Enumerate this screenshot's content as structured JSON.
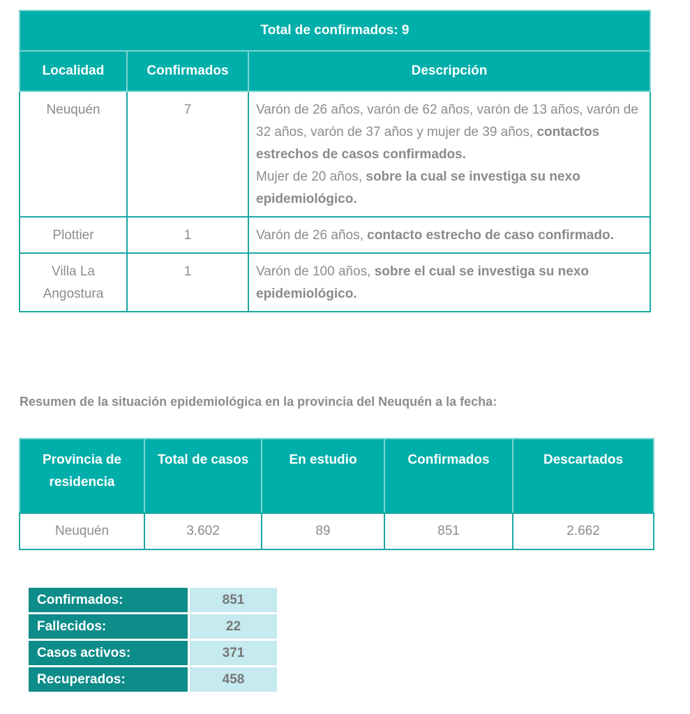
{
  "table1": {
    "title": "Total de confirmados: 9",
    "headers": [
      "Localidad",
      "Confirmados",
      "Descripción"
    ],
    "rows": [
      {
        "localidad": "Neuquén",
        "confirmados": "7",
        "desc": [
          {
            "t": "Varón de 26 años, varón de 62 años, varón de 13 años, varón de 32 años, varón de 37 años y mujer de 39 años, ",
            "b": false
          },
          {
            "t": "contactos estrechos de casos confirmados.",
            "b": true
          },
          {
            "t": "Mujer de 20 años, ",
            "b": false,
            "br": true
          },
          {
            "t": "sobre la cual se investiga su nexo epidemiológico.",
            "b": true
          }
        ]
      },
      {
        "localidad": "Plottier",
        "confirmados": "1",
        "desc": [
          {
            "t": "Varón de 26 años, ",
            "b": false
          },
          {
            "t": "contacto estrecho de caso confirmado.",
            "b": true
          }
        ]
      },
      {
        "localidad": "Villa La Angostura",
        "confirmados": "1",
        "desc": [
          {
            "t": "Varón de 100 años, ",
            "b": false
          },
          {
            "t": "sobre el cual se investiga su nexo epidemiológico.",
            "b": true
          }
        ]
      }
    ]
  },
  "heading": "Resumen de la situación epidemiológica en la provincia del Neuquén a la fecha:",
  "table2": {
    "headers": [
      "Provincia de residencia",
      "Total de casos",
      "En estudio",
      "Confirmados",
      "Descartados"
    ],
    "row": [
      "Neuquén",
      "3.602",
      "89",
      "851",
      "2.662"
    ]
  },
  "table3": [
    {
      "label": "Confirmados:",
      "value": "851"
    },
    {
      "label": "Fallecidos:",
      "value": "22"
    },
    {
      "label": "Casos activos:",
      "value": "371"
    },
    {
      "label": "Recuperados:",
      "value": "458"
    }
  ],
  "colors": {
    "header_teal": "#00aeaa",
    "dark_teal": "#0e8c8a",
    "light_cyan": "#c5eaf0",
    "text_gray": "#8c8c8c"
  }
}
